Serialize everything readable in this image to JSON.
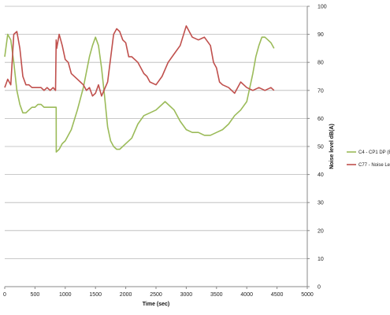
{
  "chart_data": {
    "type": "line",
    "xlabel": "Time (sec)",
    "ylabel": "Noise level dB(A)",
    "xlim": [
      0,
      5000
    ],
    "ylim": [
      0,
      100
    ],
    "x_ticks": [
      0,
      500,
      1000,
      1500,
      2000,
      2500,
      3000,
      3500,
      4000,
      4500,
      5000
    ],
    "y_ticks": [
      0,
      10,
      20,
      30,
      40,
      50,
      60,
      70,
      80,
      90,
      100
    ],
    "grid": true,
    "y_axis_position": "right",
    "legend_position": "right",
    "series": [
      {
        "name": "C4 - CP1 DP (B",
        "color": "#9bbb59",
        "x": [
          0,
          50,
          100,
          150,
          200,
          250,
          300,
          350,
          400,
          450,
          500,
          550,
          600,
          650,
          700,
          750,
          800,
          850,
          851,
          900,
          950,
          1000,
          1100,
          1200,
          1300,
          1400,
          1450,
          1500,
          1550,
          1600,
          1650,
          1700,
          1750,
          1800,
          1850,
          1900,
          1950,
          2000,
          2100,
          2200,
          2300,
          2400,
          2500,
          2600,
          2650,
          2700,
          2800,
          2900,
          3000,
          3100,
          3200,
          3300,
          3400,
          3500,
          3600,
          3700,
          3800,
          3900,
          4000,
          4100,
          4150,
          4200,
          4250,
          4300,
          4350,
          4400,
          4450
        ],
        "values": [
          82,
          90,
          88,
          80,
          70,
          65,
          62,
          62,
          63,
          64,
          64,
          65,
          65,
          64,
          64,
          64,
          64,
          64,
          48,
          49,
          51,
          52,
          56,
          63,
          71,
          82,
          86,
          89,
          86,
          78,
          68,
          57,
          52,
          50,
          49,
          49,
          50,
          51,
          53,
          58,
          61,
          62,
          63,
          65,
          66,
          65,
          63,
          59,
          56,
          55,
          55,
          54,
          54,
          55,
          56,
          58,
          61,
          63,
          66,
          76,
          82,
          86,
          89,
          89,
          88,
          87,
          85
        ]
      },
      {
        "name": "C77 - Noise Le",
        "color": "#c0504d",
        "x": [
          0,
          50,
          100,
          150,
          200,
          250,
          300,
          350,
          400,
          450,
          500,
          550,
          600,
          650,
          700,
          750,
          800,
          840,
          850,
          860,
          900,
          950,
          1000,
          1050,
          1100,
          1200,
          1250,
          1300,
          1350,
          1400,
          1450,
          1500,
          1550,
          1600,
          1700,
          1800,
          1850,
          1900,
          1950,
          2000,
          2050,
          2100,
          2200,
          2250,
          2300,
          2350,
          2400,
          2500,
          2600,
          2700,
          2800,
          2900,
          3000,
          3050,
          3100,
          3200,
          3300,
          3400,
          3450,
          3500,
          3550,
          3600,
          3700,
          3800,
          3900,
          4000,
          4100,
          4200,
          4300,
          4400,
          4450
        ],
        "values": [
          71,
          74,
          72,
          90,
          91,
          85,
          75,
          72,
          72,
          71,
          71,
          71,
          71,
          70,
          71,
          70,
          71,
          70,
          88,
          85,
          90,
          86,
          81,
          80,
          76,
          74,
          73,
          72,
          70,
          71,
          68,
          69,
          72,
          68,
          73,
          90,
          92,
          91,
          88,
          87,
          82,
          82,
          80,
          78,
          76,
          75,
          73,
          72,
          75,
          80,
          83,
          86,
          93,
          91,
          89,
          88,
          89,
          86,
          80,
          78,
          73,
          72,
          71,
          69,
          73,
          71,
          70,
          71,
          70,
          71,
          70
        ]
      }
    ]
  }
}
